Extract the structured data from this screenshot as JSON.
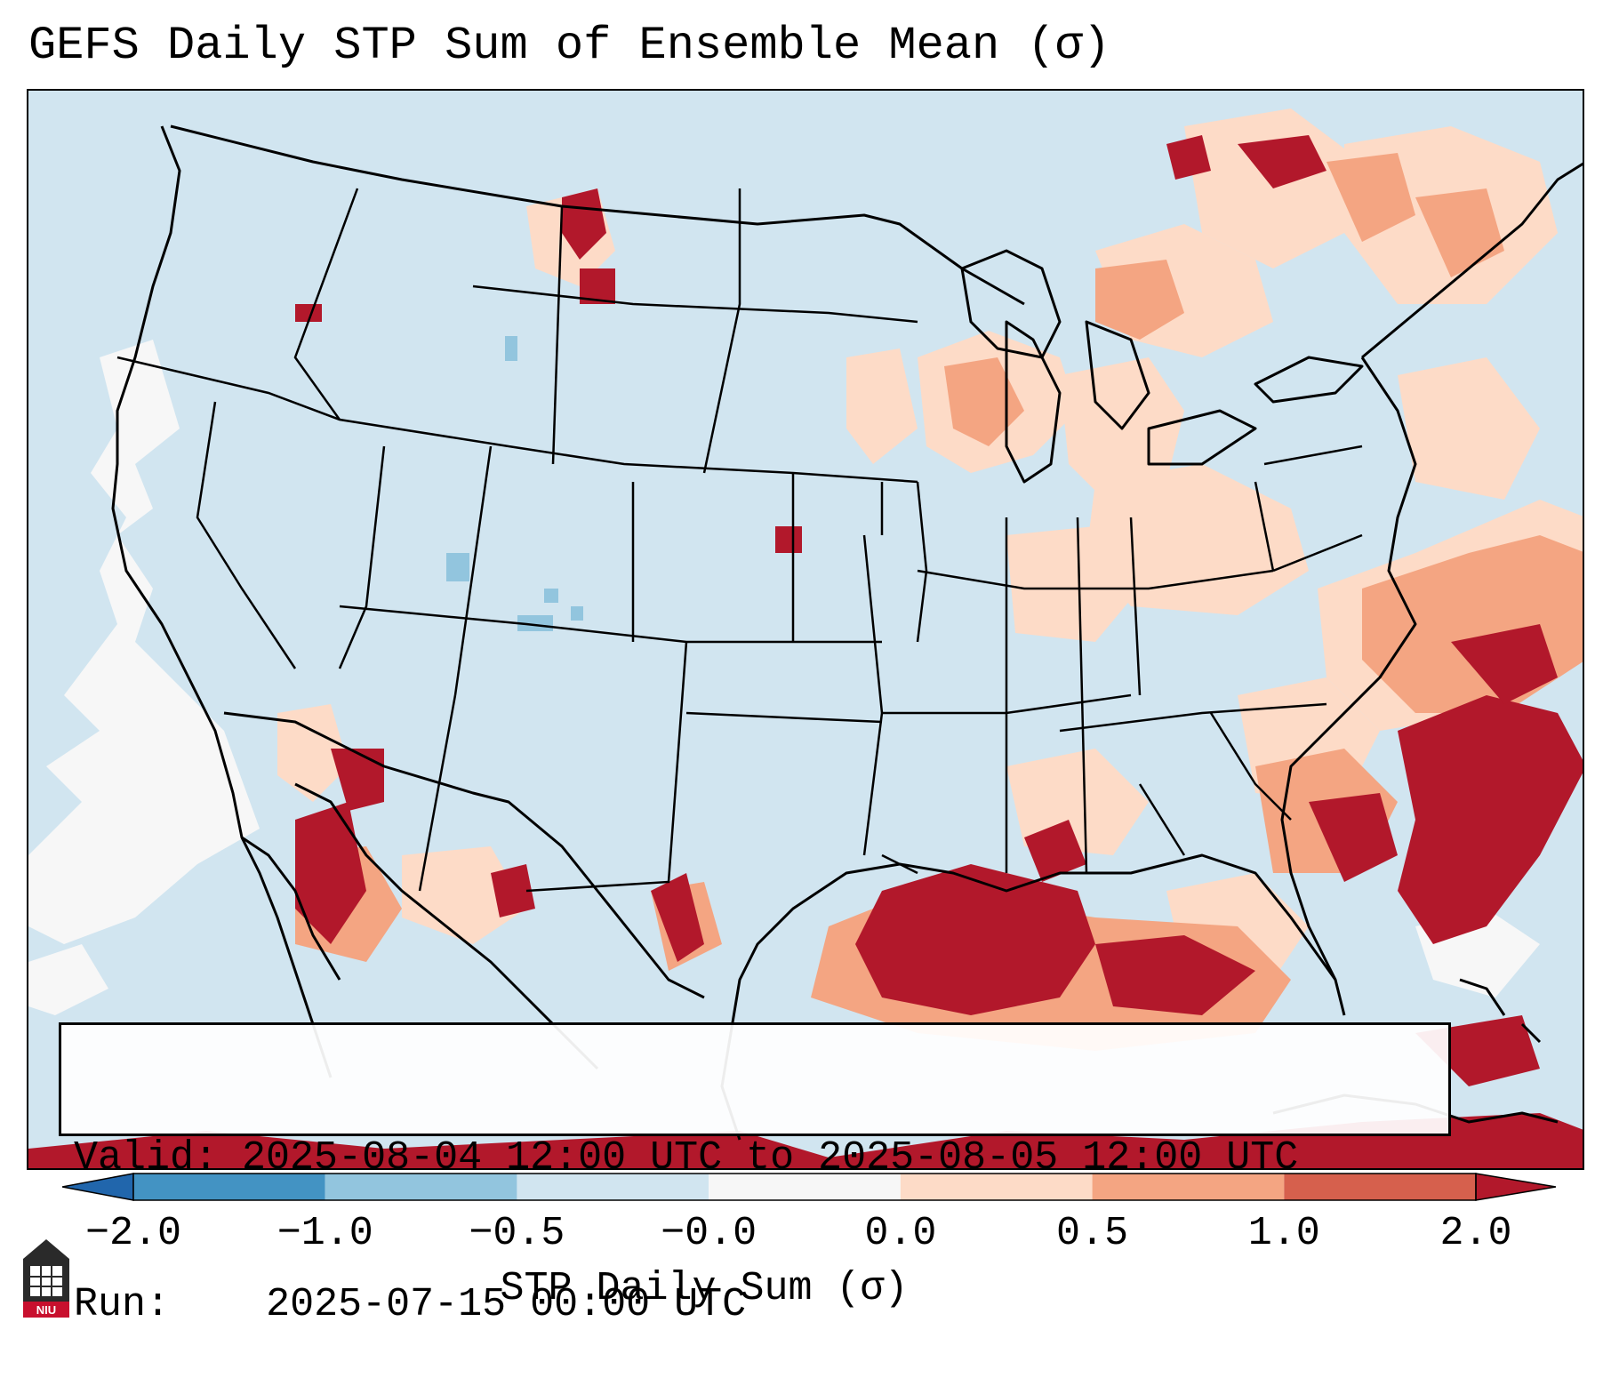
{
  "title": "GEFS Daily STP Sum of Ensemble Mean (σ)",
  "info": {
    "valid_label": "Valid:",
    "valid_value": "2025-08-04 12:00 UTC to 2025-08-05 12:00 UTC",
    "run_label": "Run:",
    "run_value": "2025-07-15 00:00 UTC"
  },
  "colorbar": {
    "title": "STP Daily Sum (σ)",
    "ticks": [
      "−2.0",
      "−1.0",
      "−0.5",
      "−0.0",
      "0.0",
      "0.5",
      "1.0",
      "2.0"
    ],
    "colors": [
      "#4393c3",
      "#92c5de",
      "#d1e5f0",
      "#f7f7f7",
      "#fddbc7",
      "#f4a582",
      "#d6604d",
      "#b2182b"
    ],
    "under_color": "#2166ac",
    "over_color": "#b2182b"
  },
  "map": {
    "background_color": "#d1e5f0",
    "region": "Contiguous United States, southern Canada, northern Mexico, Gulf of Mexico, western Atlantic"
  },
  "logo": {
    "text": "NIU",
    "color": "#c8102e"
  }
}
